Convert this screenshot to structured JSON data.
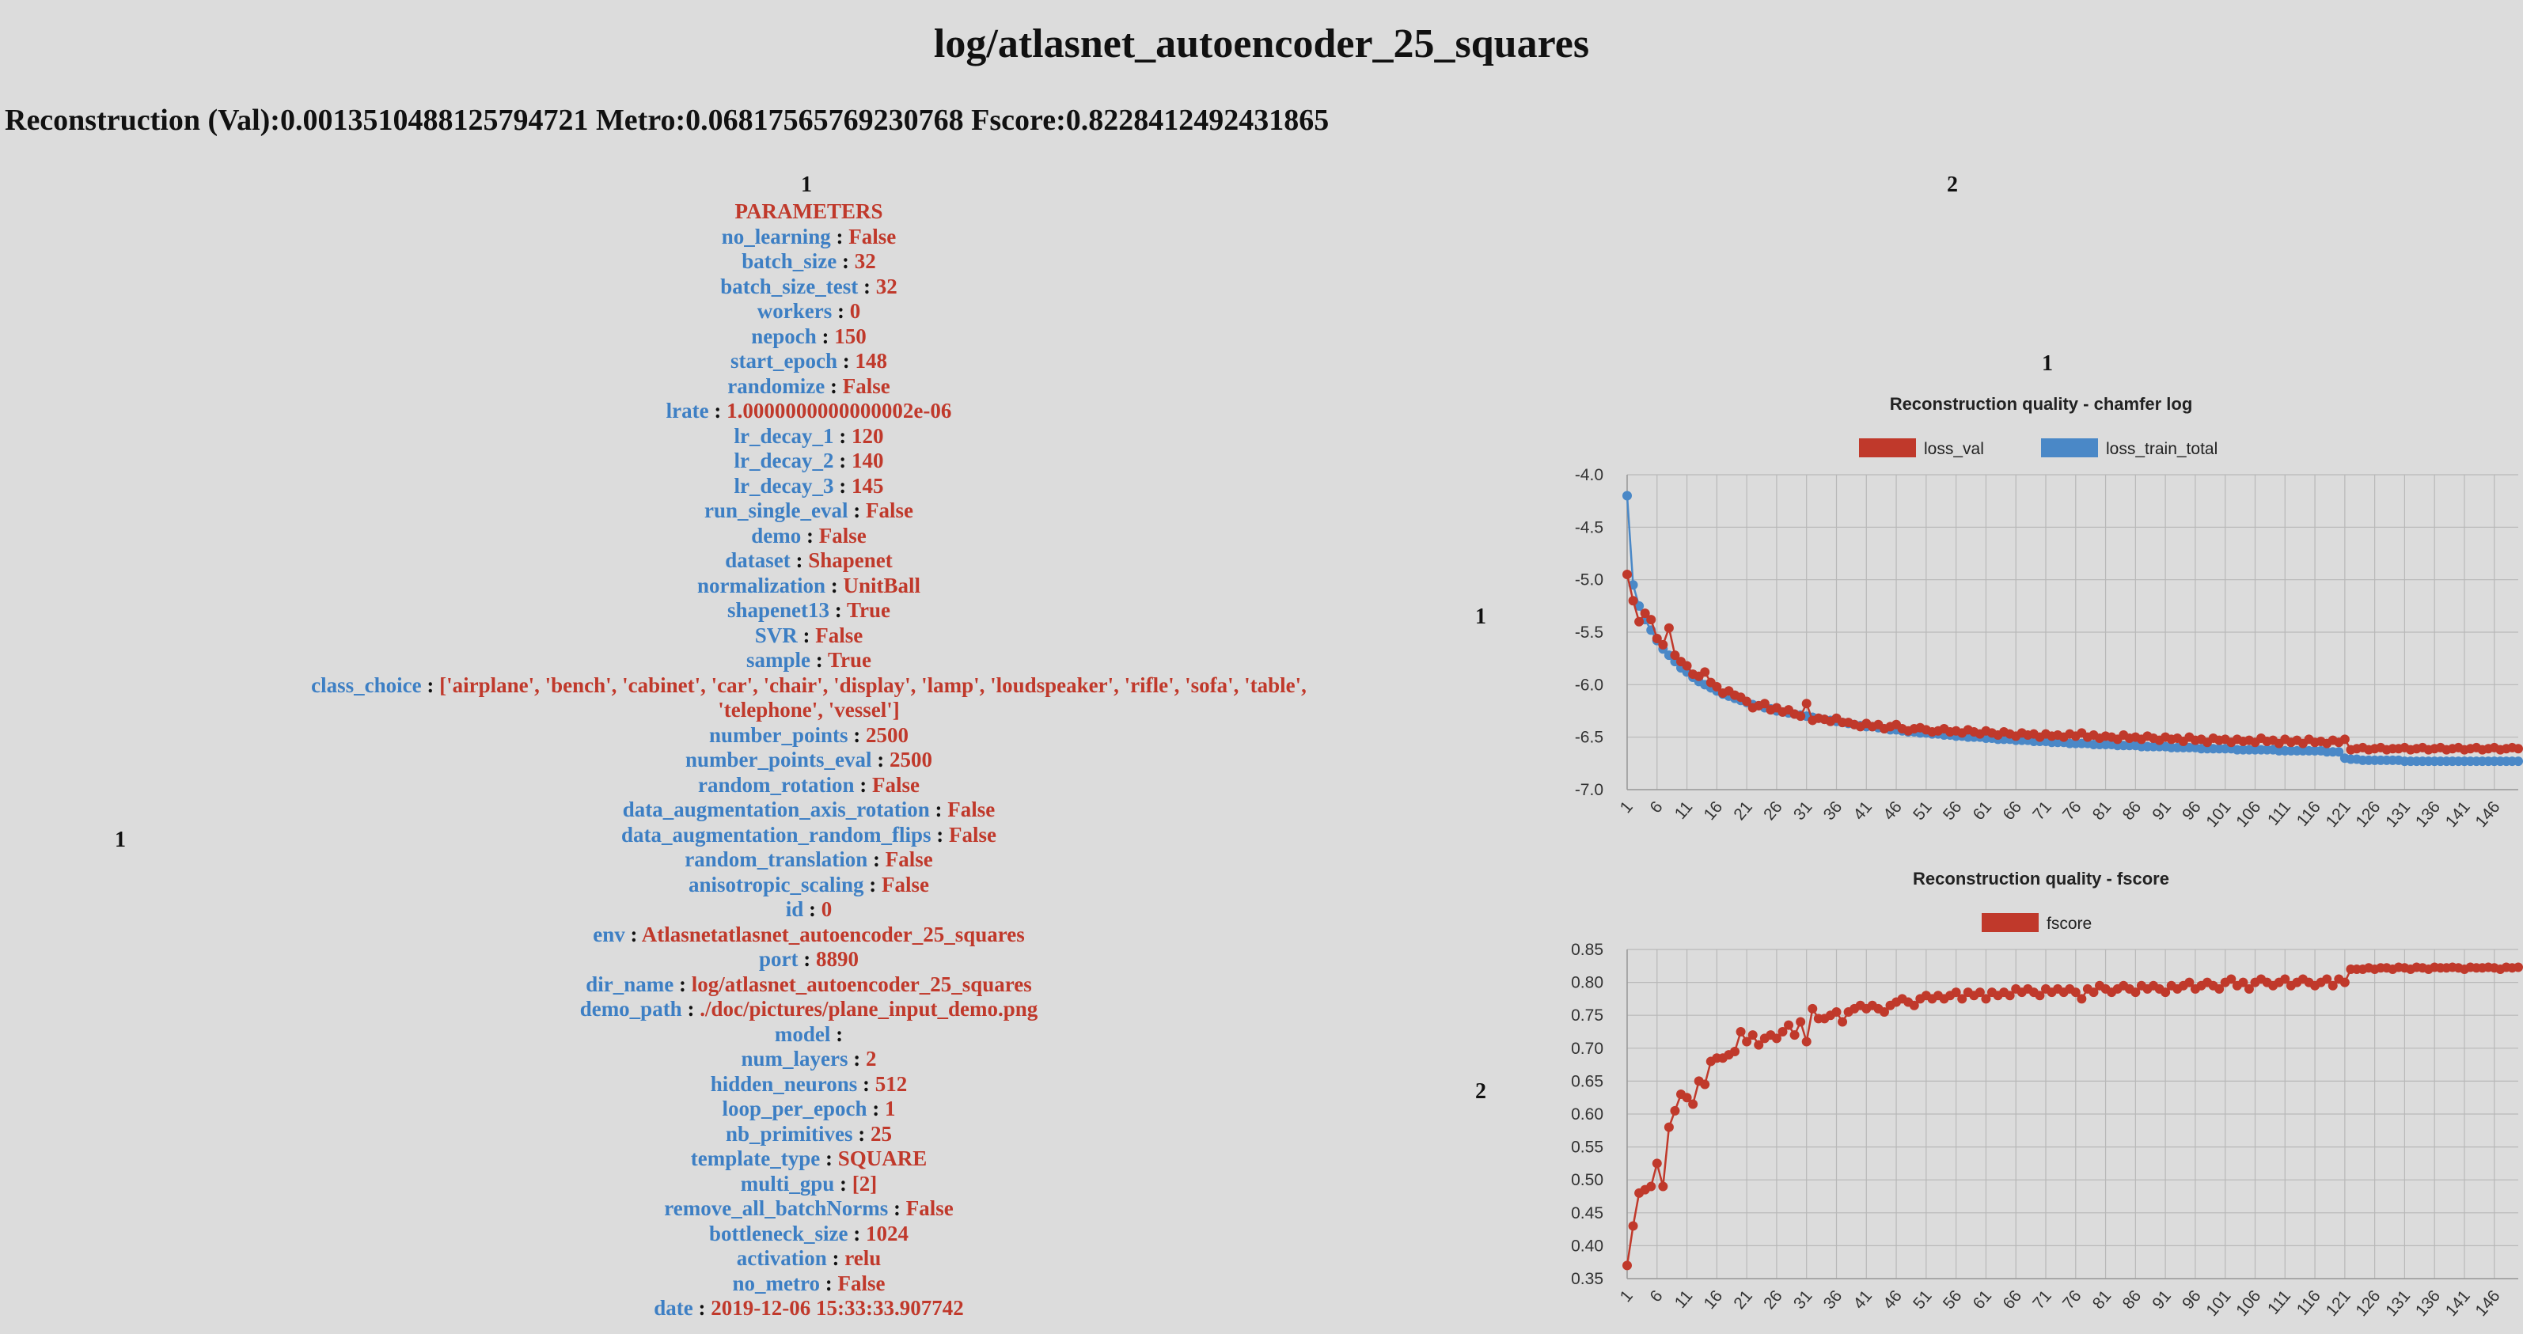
{
  "page_title": "log/atlasnet_autoencoder_25_squares",
  "metrics_line": "Reconstruction (Val):0.0013510488125794721 Metro:0.06817565769230768 Fscore:0.8228412492431865",
  "labels": {
    "col1": "1",
    "col2": "2",
    "left_row": "1",
    "right_col": "1",
    "row1": "1",
    "row2": "2"
  },
  "params_header": "PARAMETERS",
  "params": [
    {
      "k": "no_learning",
      "v": "False"
    },
    {
      "k": "batch_size",
      "v": "32"
    },
    {
      "k": "batch_size_test",
      "v": "32"
    },
    {
      "k": "workers",
      "v": "0"
    },
    {
      "k": "nepoch",
      "v": "150"
    },
    {
      "k": "start_epoch",
      "v": "148"
    },
    {
      "k": "randomize",
      "v": "False"
    },
    {
      "k": "lrate",
      "v": "1.0000000000000002e-06"
    },
    {
      "k": "lr_decay_1",
      "v": "120"
    },
    {
      "k": "lr_decay_2",
      "v": "140"
    },
    {
      "k": "lr_decay_3",
      "v": "145"
    },
    {
      "k": "run_single_eval",
      "v": "False"
    },
    {
      "k": "demo",
      "v": "False"
    },
    {
      "k": "dataset",
      "v": "Shapenet"
    },
    {
      "k": "normalization",
      "v": "UnitBall"
    },
    {
      "k": "shapenet13",
      "v": "True"
    },
    {
      "k": "SVR",
      "v": "False"
    },
    {
      "k": "sample",
      "v": "True"
    },
    {
      "k": "class_choice",
      "v": "['airplane', 'bench', 'cabinet', 'car', 'chair', 'display', 'lamp', 'loudspeaker', 'rifle', 'sofa', 'table', 'telephone', 'vessel']"
    },
    {
      "k": "number_points",
      "v": "2500"
    },
    {
      "k": "number_points_eval",
      "v": "2500"
    },
    {
      "k": "random_rotation",
      "v": "False"
    },
    {
      "k": "data_augmentation_axis_rotation",
      "v": "False"
    },
    {
      "k": "data_augmentation_random_flips",
      "v": "False"
    },
    {
      "k": "random_translation",
      "v": "False"
    },
    {
      "k": "anisotropic_scaling",
      "v": "False"
    },
    {
      "k": "id",
      "v": "0"
    },
    {
      "k": "env",
      "v": "Atlasnetatlasnet_autoencoder_25_squares"
    },
    {
      "k": "port",
      "v": "8890"
    },
    {
      "k": "dir_name",
      "v": "log/atlasnet_autoencoder_25_squares"
    },
    {
      "k": "demo_path",
      "v": "./doc/pictures/plane_input_demo.png"
    },
    {
      "k": "model",
      "v": ""
    },
    {
      "k": "num_layers",
      "v": "2"
    },
    {
      "k": "hidden_neurons",
      "v": "512"
    },
    {
      "k": "loop_per_epoch",
      "v": "1"
    },
    {
      "k": "nb_primitives",
      "v": "25"
    },
    {
      "k": "template_type",
      "v": "SQUARE"
    },
    {
      "k": "multi_gpu",
      "v": "[2]"
    },
    {
      "k": "remove_all_batchNorms",
      "v": "False"
    },
    {
      "k": "bottleneck_size",
      "v": "1024"
    },
    {
      "k": "activation",
      "v": "relu"
    },
    {
      "k": "no_metro",
      "v": "False"
    },
    {
      "k": "date",
      "v": "2019-12-06 15:33:33.907742"
    }
  ],
  "colors": {
    "key": "#3d7fc4",
    "value": "#c0392b",
    "red": "#c0392b",
    "blue": "#4a88c7",
    "bg": "#dcdcdc"
  },
  "chart_data": [
    {
      "type": "line",
      "title": "Reconstruction quality - chamfer log",
      "x_range": [
        1,
        150
      ],
      "xticks": [
        1,
        6,
        11,
        16,
        21,
        26,
        31,
        36,
        41,
        46,
        51,
        56,
        61,
        66,
        71,
        76,
        81,
        86,
        91,
        96,
        101,
        106,
        111,
        116,
        121,
        126,
        131,
        136,
        141,
        146
      ],
      "ylim": [
        -7.0,
        -4.0
      ],
      "yticks": [
        -4.0,
        -4.5,
        -5.0,
        -5.5,
        -6.0,
        -6.5,
        -7.0
      ],
      "grid": true,
      "legend_position": "top-center",
      "series": [
        {
          "name": "loss_val",
          "color": "#c0392b",
          "values": [
            -4.95,
            -5.2,
            -5.4,
            -5.32,
            -5.38,
            -5.56,
            -5.62,
            -5.46,
            -5.72,
            -5.78,
            -5.82,
            -5.9,
            -5.92,
            -5.88,
            -5.98,
            -6.02,
            -6.08,
            -6.06,
            -6.1,
            -6.12,
            -6.16,
            -6.22,
            -6.2,
            -6.18,
            -6.24,
            -6.22,
            -6.26,
            -6.24,
            -6.28,
            -6.3,
            -6.18,
            -6.34,
            -6.32,
            -6.33,
            -6.35,
            -6.32,
            -6.36,
            -6.36,
            -6.38,
            -6.4,
            -6.37,
            -6.4,
            -6.38,
            -6.42,
            -6.4,
            -6.38,
            -6.42,
            -6.44,
            -6.42,
            -6.41,
            -6.43,
            -6.45,
            -6.44,
            -6.42,
            -6.45,
            -6.44,
            -6.46,
            -6.43,
            -6.45,
            -6.47,
            -6.44,
            -6.46,
            -6.48,
            -6.45,
            -6.47,
            -6.49,
            -6.46,
            -6.48,
            -6.47,
            -6.5,
            -6.47,
            -6.49,
            -6.48,
            -6.5,
            -6.47,
            -6.49,
            -6.46,
            -6.5,
            -6.48,
            -6.51,
            -6.49,
            -6.5,
            -6.52,
            -6.48,
            -6.51,
            -6.5,
            -6.52,
            -6.49,
            -6.51,
            -6.53,
            -6.5,
            -6.52,
            -6.51,
            -6.54,
            -6.5,
            -6.53,
            -6.52,
            -6.55,
            -6.51,
            -6.53,
            -6.52,
            -6.55,
            -6.52,
            -6.54,
            -6.53,
            -6.55,
            -6.51,
            -6.54,
            -6.53,
            -6.56,
            -6.52,
            -6.55,
            -6.53,
            -6.56,
            -6.52,
            -6.55,
            -6.54,
            -6.56,
            -6.53,
            -6.55,
            -6.52,
            -6.62,
            -6.61,
            -6.6,
            -6.62,
            -6.61,
            -6.6,
            -6.62,
            -6.61,
            -6.61,
            -6.6,
            -6.62,
            -6.61,
            -6.6,
            -6.62,
            -6.61,
            -6.6,
            -6.62,
            -6.61,
            -6.6,
            -6.62,
            -6.61,
            -6.6,
            -6.62,
            -6.61,
            -6.6,
            -6.62,
            -6.61,
            -6.6,
            -6.61
          ]
        },
        {
          "name": "loss_train_total",
          "color": "#4a88c7",
          "values": [
            -4.2,
            -5.05,
            -5.25,
            -5.38,
            -5.48,
            -5.58,
            -5.66,
            -5.72,
            -5.78,
            -5.84,
            -5.88,
            -5.93,
            -5.97,
            -6.0,
            -6.03,
            -6.06,
            -6.09,
            -6.11,
            -6.13,
            -6.15,
            -6.17,
            -6.19,
            -6.2,
            -6.22,
            -6.23,
            -6.25,
            -6.26,
            -6.27,
            -6.28,
            -6.29,
            -6.3,
            -6.31,
            -6.32,
            -6.33,
            -6.34,
            -6.35,
            -6.36,
            -6.37,
            -6.38,
            -6.39,
            -6.4,
            -6.4,
            -6.41,
            -6.42,
            -6.43,
            -6.43,
            -6.44,
            -6.45,
            -6.45,
            -6.46,
            -6.46,
            -6.47,
            -6.47,
            -6.48,
            -6.48,
            -6.49,
            -6.49,
            -6.5,
            -6.5,
            -6.5,
            -6.51,
            -6.51,
            -6.52,
            -6.52,
            -6.52,
            -6.53,
            -6.53,
            -6.53,
            -6.54,
            -6.54,
            -6.54,
            -6.55,
            -6.55,
            -6.55,
            -6.56,
            -6.56,
            -6.56,
            -6.56,
            -6.57,
            -6.57,
            -6.57,
            -6.57,
            -6.58,
            -6.58,
            -6.58,
            -6.58,
            -6.59,
            -6.59,
            -6.59,
            -6.59,
            -6.59,
            -6.6,
            -6.6,
            -6.6,
            -6.6,
            -6.6,
            -6.61,
            -6.61,
            -6.61,
            -6.61,
            -6.61,
            -6.61,
            -6.62,
            -6.62,
            -6.62,
            -6.62,
            -6.62,
            -6.62,
            -6.62,
            -6.63,
            -6.63,
            -6.63,
            -6.63,
            -6.63,
            -6.63,
            -6.63,
            -6.63,
            -6.64,
            -6.64,
            -6.64,
            -6.7,
            -6.71,
            -6.71,
            -6.72,
            -6.72,
            -6.72,
            -6.72,
            -6.72,
            -6.72,
            -6.72,
            -6.73,
            -6.73,
            -6.73,
            -6.73,
            -6.73,
            -6.73,
            -6.73,
            -6.73,
            -6.73,
            -6.73,
            -6.73,
            -6.73,
            -6.73,
            -6.73,
            -6.73,
            -6.73,
            -6.73,
            -6.73,
            -6.73,
            -6.73
          ]
        }
      ]
    },
    {
      "type": "line",
      "title": "Reconstruction quality - fscore",
      "x_range": [
        1,
        150
      ],
      "xticks": [
        1,
        6,
        11,
        16,
        21,
        26,
        31,
        36,
        41,
        46,
        51,
        56,
        61,
        66,
        71,
        76,
        81,
        86,
        91,
        96,
        101,
        106,
        111,
        116,
        121,
        126,
        131,
        136,
        141,
        146
      ],
      "ylim": [
        0.35,
        0.85
      ],
      "yticks": [
        0.85,
        0.8,
        0.75,
        0.7,
        0.65,
        0.6,
        0.55,
        0.5,
        0.45,
        0.4,
        0.35
      ],
      "grid": true,
      "legend_position": "top-center",
      "series": [
        {
          "name": "fscore",
          "color": "#c0392b",
          "values": [
            0.37,
            0.43,
            0.48,
            0.485,
            0.49,
            0.525,
            0.49,
            0.58,
            0.605,
            0.63,
            0.625,
            0.615,
            0.65,
            0.645,
            0.68,
            0.685,
            0.685,
            0.69,
            0.695,
            0.725,
            0.71,
            0.72,
            0.705,
            0.715,
            0.72,
            0.715,
            0.725,
            0.735,
            0.72,
            0.74,
            0.71,
            0.76,
            0.745,
            0.745,
            0.75,
            0.755,
            0.74,
            0.755,
            0.76,
            0.765,
            0.76,
            0.765,
            0.76,
            0.755,
            0.765,
            0.77,
            0.775,
            0.77,
            0.765,
            0.775,
            0.78,
            0.775,
            0.78,
            0.775,
            0.78,
            0.785,
            0.775,
            0.785,
            0.78,
            0.785,
            0.775,
            0.785,
            0.78,
            0.785,
            0.78,
            0.79,
            0.785,
            0.79,
            0.785,
            0.78,
            0.79,
            0.785,
            0.79,
            0.785,
            0.79,
            0.785,
            0.775,
            0.79,
            0.785,
            0.795,
            0.79,
            0.785,
            0.79,
            0.795,
            0.79,
            0.785,
            0.795,
            0.79,
            0.795,
            0.79,
            0.785,
            0.795,
            0.79,
            0.795,
            0.8,
            0.79,
            0.795,
            0.8,
            0.795,
            0.79,
            0.8,
            0.805,
            0.795,
            0.8,
            0.79,
            0.8,
            0.805,
            0.8,
            0.795,
            0.8,
            0.805,
            0.795,
            0.8,
            0.805,
            0.8,
            0.795,
            0.8,
            0.805,
            0.795,
            0.805,
            0.8,
            0.82,
            0.82,
            0.82,
            0.822,
            0.82,
            0.822,
            0.822,
            0.82,
            0.823,
            0.822,
            0.82,
            0.823,
            0.822,
            0.82,
            0.823,
            0.822,
            0.822,
            0.823,
            0.822,
            0.82,
            0.823,
            0.822,
            0.822,
            0.823,
            0.822,
            0.82,
            0.823,
            0.822,
            0.823
          ]
        }
      ]
    }
  ]
}
